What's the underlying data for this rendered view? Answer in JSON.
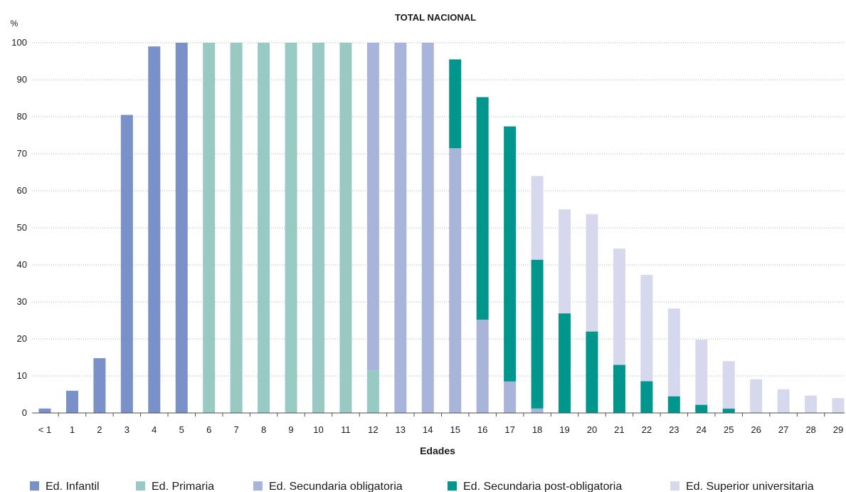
{
  "chart_data": {
    "type": "bar",
    "stacked": true,
    "title": "TOTAL NACIONAL",
    "ylabel": "%",
    "xlabel": "Edades",
    "ylim": [
      0,
      100
    ],
    "yticks": [
      0,
      10,
      20,
      30,
      40,
      50,
      60,
      70,
      80,
      90,
      100
    ],
    "grid": "horizontal dotted",
    "legend_position": "bottom",
    "categories": [
      "< 1",
      "1",
      "2",
      "3",
      "4",
      "5",
      "6",
      "7",
      "8",
      "9",
      "10",
      "11",
      "12",
      "13",
      "14",
      "15",
      "16",
      "17",
      "18",
      "19",
      "20",
      "21",
      "22",
      "23",
      "24",
      "25",
      "26",
      "27",
      "28",
      "29"
    ],
    "series": [
      {
        "name": "Ed. Infantil",
        "color": "#7990c8",
        "values": [
          1.2,
          6,
          14.8,
          80.5,
          99,
          100,
          0,
          0,
          0,
          0,
          0,
          0,
          0,
          0,
          0,
          0,
          0,
          0,
          0,
          0,
          0,
          0,
          0,
          0,
          0,
          0,
          0,
          0,
          0,
          0
        ]
      },
      {
        "name": "Ed. Primaria",
        "color": "#99c9c3",
        "values": [
          0,
          0,
          0,
          0,
          0,
          0,
          100,
          100,
          100,
          100,
          100,
          100,
          11.5,
          0,
          0,
          0,
          0,
          0,
          0,
          0,
          0,
          0,
          0,
          0,
          0,
          0,
          0,
          0,
          0,
          0
        ]
      },
      {
        "name": "Ed. Secundaria obligatoria",
        "color": "#a9b4db",
        "values": [
          0,
          0,
          0,
          0,
          0,
          0,
          0,
          0,
          0,
          0,
          0,
          0,
          88.5,
          100,
          100,
          71.5,
          25.2,
          8.5,
          1.2,
          0,
          0,
          0,
          0,
          0,
          0,
          0,
          0,
          0,
          0,
          0
        ]
      },
      {
        "name": "Ed. Secundaria post-obligatoria",
        "color": "#00968e",
        "values": [
          0,
          0,
          0,
          0,
          0,
          0,
          0,
          0,
          0,
          0,
          0,
          0,
          0,
          0,
          0,
          24,
          60.1,
          68.9,
          40.2,
          26.9,
          22,
          13,
          8.6,
          4.5,
          2.2,
          1.2,
          0,
          0,
          0,
          0
        ]
      },
      {
        "name": "Ed. Superior universitaria",
        "color": "#d6d9ed",
        "values": [
          0,
          0,
          0,
          0,
          0,
          0,
          0,
          0,
          0,
          0,
          0,
          0,
          0,
          0,
          0,
          0,
          0,
          0,
          22.6,
          28.1,
          31.7,
          31.4,
          28.7,
          23.7,
          17.6,
          12.8,
          9.1,
          6.4,
          4.7,
          4
        ]
      }
    ]
  }
}
